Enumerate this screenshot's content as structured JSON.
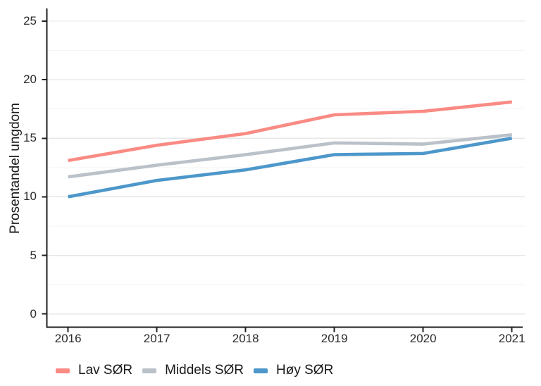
{
  "chart_data": {
    "type": "line",
    "title": "",
    "xlabel": "",
    "ylabel": "Prosentandel ungdom",
    "x": [
      2016,
      2017,
      2018,
      2019,
      2020,
      2021
    ],
    "series": [
      {
        "name": "Lav SØR",
        "color": "#F98B84",
        "values": [
          13.1,
          14.4,
          15.4,
          17.0,
          17.3,
          18.1
        ]
      },
      {
        "name": "Middels SØR",
        "color": "#BAC1C8",
        "values": [
          11.7,
          12.7,
          13.6,
          14.6,
          14.5,
          15.3
        ]
      },
      {
        "name": "Høy SØR",
        "color": "#4D97CA",
        "values": [
          10.0,
          11.4,
          12.3,
          13.6,
          13.7,
          15.0
        ]
      }
    ],
    "ylim": [
      0,
      26
    ],
    "y_major_ticks": [
      0,
      5,
      10,
      15,
      20,
      25
    ],
    "y_minor_ticks": [
      2.5,
      7.5,
      12.5,
      17.5,
      22.5
    ],
    "grid": "horizontal",
    "legend_position": "bottom-left",
    "colors": {
      "axis": "#1f1f1f",
      "major_grid": "#e7e7e7",
      "minor_grid": "#f3f3f3",
      "tick_text": "#2b2b2b"
    }
  }
}
